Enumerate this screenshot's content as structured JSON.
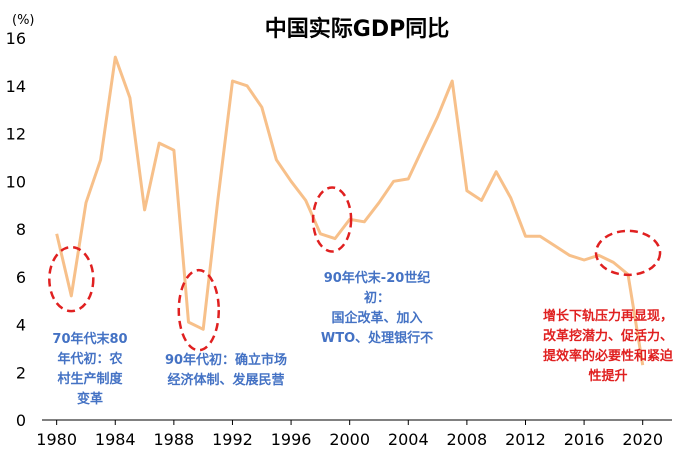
{
  "chart_data": {
    "type": "line",
    "title": "中国实际GDP同比",
    "unit": "(%)",
    "ylim": [
      0,
      16
    ],
    "y_ticks": [
      0,
      2,
      4,
      6,
      8,
      10,
      12,
      14,
      16
    ],
    "xlim": [
      1979,
      2022
    ],
    "x_ticks": [
      1980,
      1984,
      1988,
      1992,
      1996,
      2000,
      2004,
      2008,
      2012,
      2016,
      2020
    ],
    "grid": false,
    "colors": {
      "line": "#f7c08a",
      "highlight": "#e02020",
      "note_blue": "#4472c4",
      "note_red": "#e02020"
    },
    "series": [
      {
        "x": [
          1980,
          1981,
          1982,
          1983,
          1984,
          1985,
          1986,
          1987,
          1988,
          1989,
          1990,
          1991,
          1992,
          1993,
          1994,
          1995,
          1996,
          1997,
          1998,
          1999,
          2000,
          2001,
          2002,
          2003,
          2004,
          2005,
          2006,
          2007,
          2008,
          2009,
          2010,
          2011,
          2012,
          2013,
          2014,
          2015,
          2016,
          2017,
          2018,
          2019,
          2020,
          2021
        ],
        "values": [
          7.8,
          5.2,
          9.1,
          10.9,
          15.2,
          13.5,
          8.8,
          11.6,
          11.3,
          4.1,
          3.8,
          9.2,
          14.2,
          14.0,
          13.1,
          10.9,
          10.0,
          9.2,
          7.8,
          7.6,
          8.4,
          8.3,
          9.1,
          10.0,
          10.1,
          11.4,
          12.7,
          14.2,
          9.6,
          9.2,
          10.4,
          9.3,
          7.7,
          7.7,
          7.3,
          6.9,
          6.7,
          6.9,
          6.6,
          6.1,
          2.3,
          null
        ]
      }
    ],
    "highlights": [
      {
        "name": "circle-1981",
        "x": 1981.0,
        "y": 5.9
      },
      {
        "name": "circle-1990",
        "x": 1989.7,
        "y": 4.6
      },
      {
        "name": "circle-1999",
        "x": 1998.8,
        "y": 8.4
      },
      {
        "name": "circle-2019",
        "x": 2019.0,
        "y": 7.0
      }
    ],
    "annotations": [
      {
        "name": "note-1970s",
        "color": "blue",
        "lines": [
          "70年代末80",
          "年代初：农",
          "村生产制度",
          "变革"
        ]
      },
      {
        "name": "note-1990s-early",
        "color": "blue",
        "lines": [
          "90年代初：确立市场",
          "经济体制、发展民营"
        ]
      },
      {
        "name": "note-1990s-late",
        "color": "blue",
        "lines": [
          "90年代末-20世纪",
          "初：",
          "国企改革、加入",
          "WTO、处理银行不"
        ]
      },
      {
        "name": "note-2020",
        "color": "red",
        "lines": [
          "增长下轨压力再显现，",
          "改革挖潜力、促活力、",
          "提效率的必要性和紧迫",
          "性提升"
        ]
      }
    ]
  }
}
